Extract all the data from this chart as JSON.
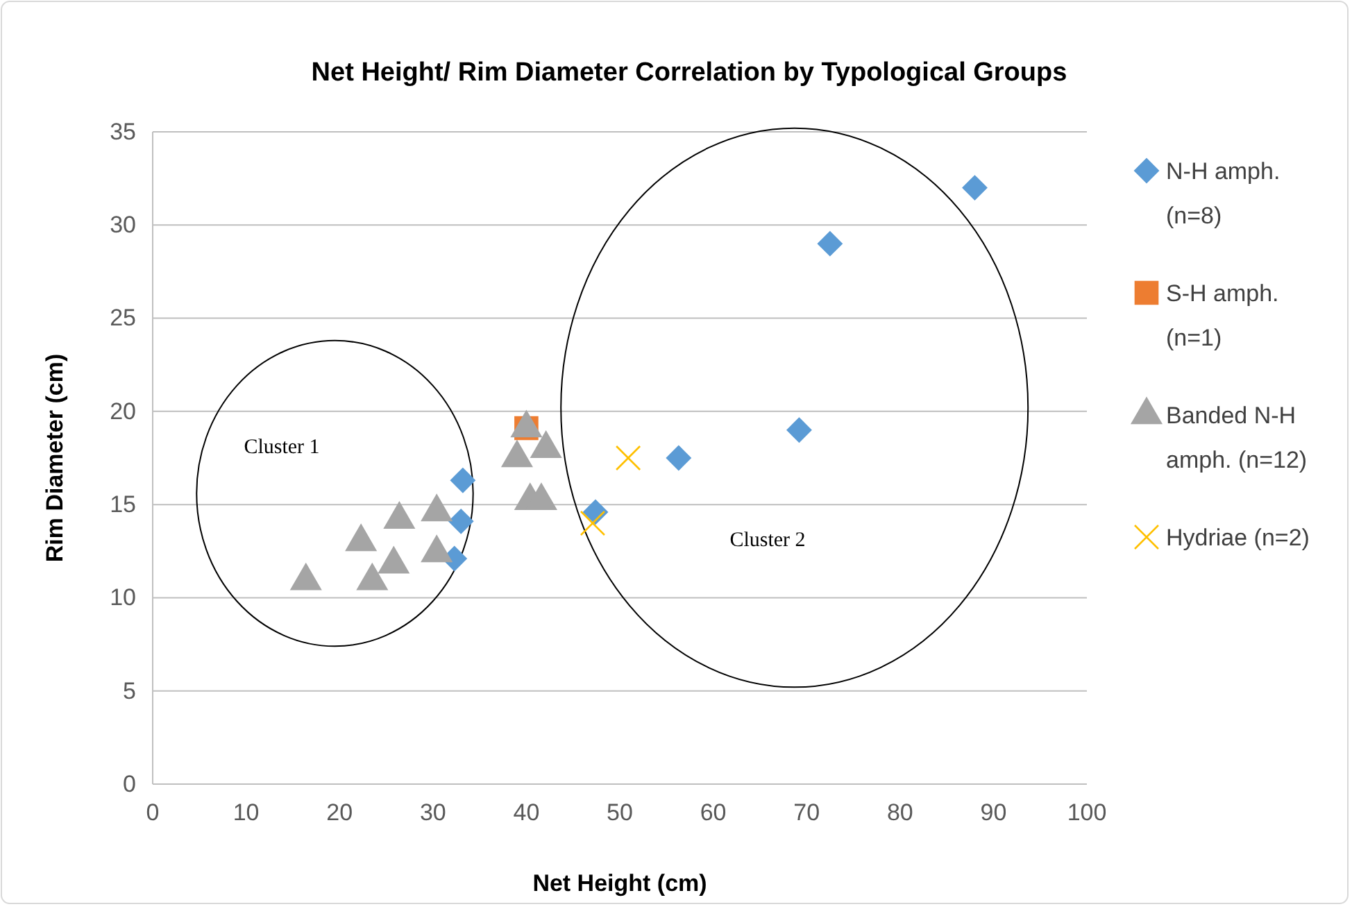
{
  "chart_data": {
    "type": "scatter",
    "title": "Net Height/ Rim Diameter Correlation by Typological Groups",
    "xlabel": "Net Height (cm)",
    "ylabel": "Rim Diameter (cm)",
    "xlim": [
      0,
      100
    ],
    "xticks": [
      0,
      10,
      20,
      30,
      40,
      50,
      60,
      70,
      80,
      90,
      100
    ],
    "ylim": [
      0,
      35
    ],
    "yticks": [
      0,
      5,
      10,
      15,
      20,
      25,
      30,
      35
    ],
    "grid": "y",
    "legend": "right",
    "annotations": [
      "Cluster 1",
      "Cluster 2"
    ],
    "series": [
      {
        "name": "N-H amph. (n=8)",
        "color": "#5b9bd5",
        "marker": "diamond",
        "x": [
          33.2,
          33,
          32.3,
          47.4,
          56.3,
          69.2,
          72.5,
          88
        ],
        "values": [
          16.3,
          14.1,
          12.1,
          14.6,
          17.5,
          19,
          29,
          32
        ]
      },
      {
        "name": "S-H amph. (n=1)",
        "color": "#ed7d31",
        "marker": "square",
        "x": [
          40
        ],
        "values": [
          19.1
        ]
      },
      {
        "name": "Banded N-H amph. (n=12)",
        "color": "#a5a5a5",
        "marker": "triangle",
        "x": [
          16.4,
          22.3,
          23.5,
          25.8,
          26.4,
          30.4,
          30.4,
          39,
          40,
          42.1,
          40.4,
          41.6
        ],
        "values": [
          10.9,
          13,
          10.9,
          11.8,
          14.2,
          14.6,
          12.4,
          17.5,
          19.1,
          18,
          15.2,
          15.2
        ]
      },
      {
        "name": "Hydriae (n=2)",
        "color": "#ffc000",
        "marker": "cross",
        "x": [
          50.9,
          47.1
        ],
        "values": [
          17.5,
          14
        ]
      }
    ]
  }
}
